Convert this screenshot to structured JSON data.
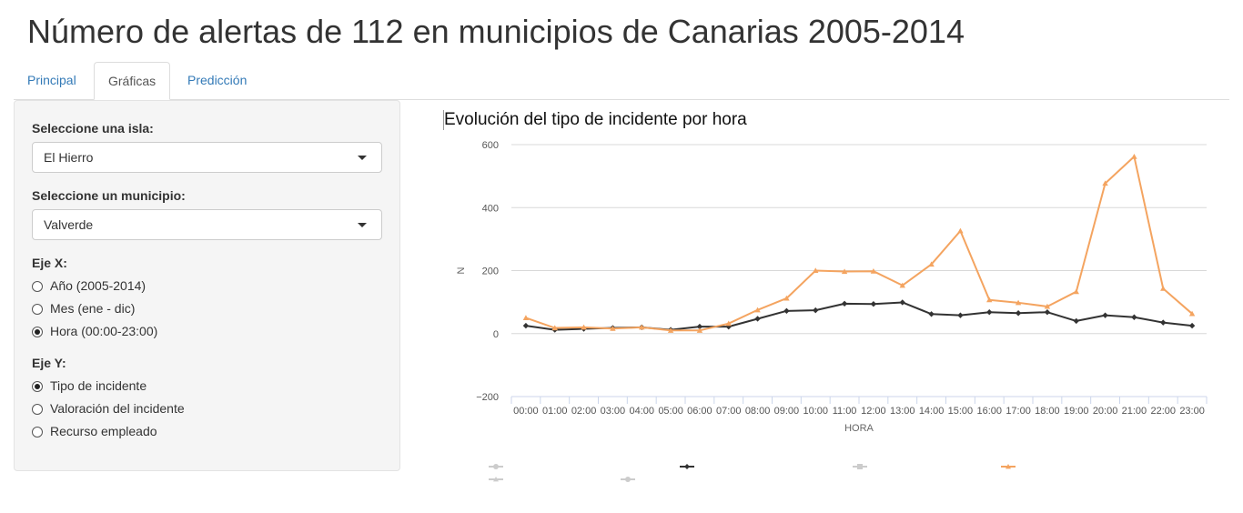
{
  "page": {
    "title": "Número de alertas de 112 en municipios de Canarias 2005-2014"
  },
  "tabs": [
    {
      "label": "Principal",
      "active": false
    },
    {
      "label": "Gráficas",
      "active": true
    },
    {
      "label": "Predicción",
      "active": false
    }
  ],
  "sidebar": {
    "island": {
      "label": "Seleccione una isla:",
      "value": "El Hierro"
    },
    "municipality": {
      "label": "Seleccione un municipio:",
      "value": "Valverde"
    },
    "x_axis": {
      "label": "Eje X:",
      "options": [
        {
          "label": "Año (2005-2014)",
          "checked": false
        },
        {
          "label": "Mes (ene - dic)",
          "checked": false
        },
        {
          "label": "Hora (00:00-23:00)",
          "checked": true
        }
      ]
    },
    "y_axis": {
      "label": "Eje Y:",
      "options": [
        {
          "label": "Tipo de incidente",
          "checked": true
        },
        {
          "label": "Valoración del incidente",
          "checked": false
        },
        {
          "label": "Recurso empleado",
          "checked": false
        }
      ]
    }
  },
  "chart_data": {
    "type": "line",
    "title": "Evolución del tipo de incidente por hora",
    "xlabel": "HORA",
    "ylabel": "N",
    "ylim": [
      -200,
      600
    ],
    "yticks": [
      600,
      400,
      200,
      0,
      -200
    ],
    "grid": true,
    "legend_position": "bottom",
    "categories": [
      "00:00",
      "01:00",
      "02:00",
      "03:00",
      "04:00",
      "05:00",
      "06:00",
      "07:00",
      "08:00",
      "09:00",
      "10:00",
      "11:00",
      "12:00",
      "13:00",
      "14:00",
      "15:00",
      "16:00",
      "17:00",
      "18:00",
      "19:00",
      "20:00",
      "21:00",
      "22:00",
      "23:00"
    ],
    "series": [
      {
        "color": "#333333",
        "marker": "diamond",
        "values": [
          25,
          12,
          15,
          18,
          20,
          12,
          22,
          22,
          47,
          72,
          74,
          95,
          94,
          99,
          62,
          58,
          68,
          65,
          68,
          40,
          58,
          52,
          35,
          25
        ]
      },
      {
        "color": "#f4a460",
        "marker": "triangle",
        "values": [
          50,
          18,
          20,
          16,
          20,
          10,
          10,
          32,
          75,
          112,
          200,
          197,
          198,
          153,
          220,
          326,
          107,
          98,
          86,
          133,
          477,
          562,
          143,
          63
        ]
      }
    ],
    "legend_markers": [
      {
        "color": "#cccccc",
        "marker": "circle"
      },
      {
        "color": "#333333",
        "marker": "diamond"
      },
      {
        "color": "#cccccc",
        "marker": "square"
      },
      {
        "color": "#f4a460",
        "marker": "triangle"
      },
      {
        "color": "#cccccc",
        "marker": "triangle"
      },
      {
        "color": "#cccccc",
        "marker": "circle"
      }
    ]
  }
}
